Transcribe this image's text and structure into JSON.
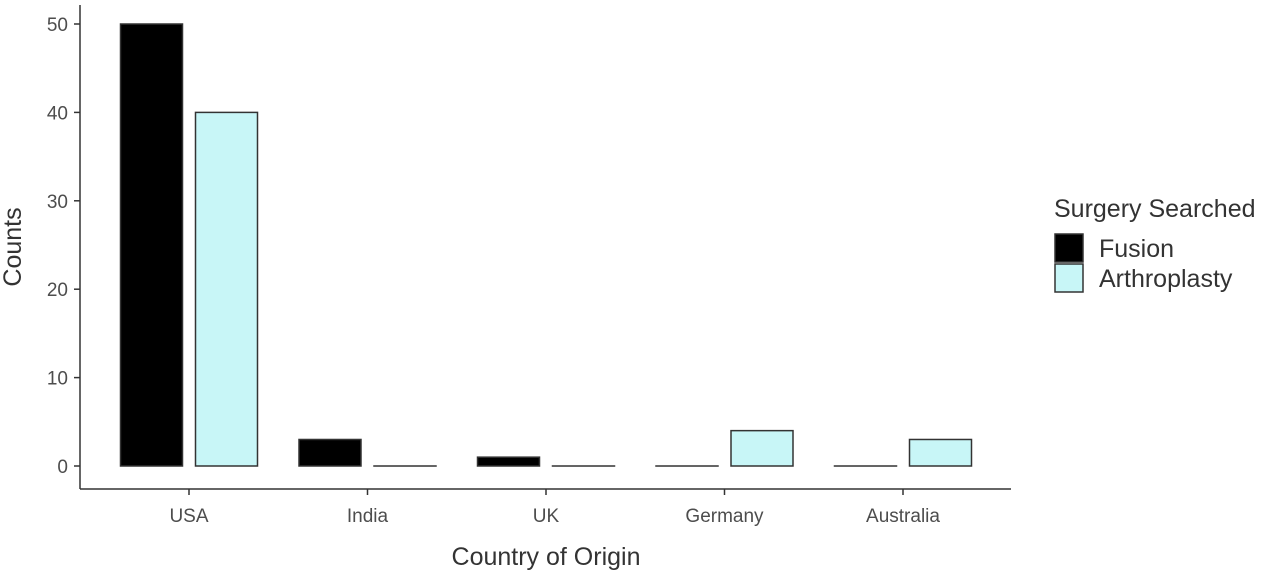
{
  "chart_data": {
    "type": "bar",
    "title": "",
    "xlabel": "Country of Origin",
    "ylabel": "Counts",
    "categories": [
      "USA",
      "India",
      "UK",
      "Germany",
      "Australia"
    ],
    "series": [
      {
        "name": "Fusion",
        "values": [
          50,
          3,
          1,
          0,
          0
        ],
        "color": "#000000"
      },
      {
        "name": "Arthroplasty",
        "values": [
          40,
          0,
          0,
          4,
          3
        ],
        "color": "#c8f6f7"
      }
    ],
    "ylim": [
      0,
      50
    ],
    "yticks": [
      0,
      10,
      20,
      30,
      40,
      50
    ],
    "grid": false,
    "legend": {
      "title": "Surgery Searched",
      "position": "right"
    }
  }
}
